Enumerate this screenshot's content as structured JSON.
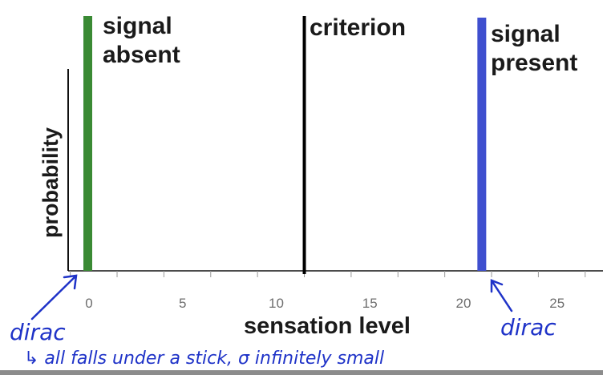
{
  "chart_data": {
    "type": "line",
    "title": "",
    "xlabel": "sensation level",
    "ylabel": "probability",
    "xlim": [
      -1,
      28
    ],
    "x_ticks": [
      0,
      5,
      10,
      15,
      20,
      25
    ],
    "grid": false,
    "legend": "none",
    "series": [
      {
        "name": "signal absent",
        "x": 0,
        "color": "#3a8a34"
      },
      {
        "name": "signal present",
        "x": 21,
        "color": "#3f4fcf"
      }
    ],
    "criterion": {
      "label": "criterion",
      "x": 11.5,
      "color": "#000000"
    },
    "annotations": {
      "left": "dirac",
      "right": "dirac",
      "note": "↳ all falls under a stick, σ infinitely small"
    }
  }
}
